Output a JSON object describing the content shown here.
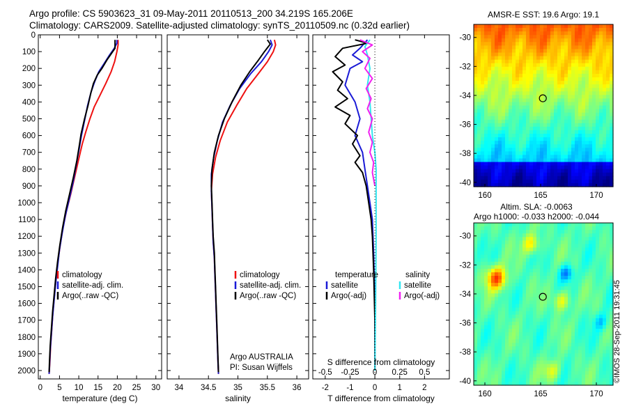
{
  "header": {
    "line1": "Argo profile: CS 5903623_31 09-May-2011 20110513_200 34.219S 165.206E",
    "line2": "Climatology: CARS2009. Satellite-adjusted climatology: synTS_20110509.nc (0.32d earlier)"
  },
  "stamp": "©IMOS 28-Sep-2011 19:31:45",
  "colors": {
    "climatology": "#ee1111",
    "satellite": "#1a1ad6",
    "argo": "#000000",
    "sat_salinity": "#33e6f0",
    "argo_salinity": "#f020f0"
  },
  "chart_data": [
    {
      "type": "line",
      "xlabel": "temperature (deg C)",
      "ylabel": "",
      "xlim": [
        -0.5,
        31.5
      ],
      "ylim": [
        2050,
        0
      ],
      "xticks": [
        0,
        5,
        10,
        15,
        20,
        25,
        30
      ],
      "yticks": [
        0,
        100,
        200,
        300,
        400,
        500,
        600,
        700,
        800,
        900,
        1000,
        1100,
        1200,
        1300,
        1400,
        1500,
        1600,
        1700,
        1800,
        1900,
        2000
      ],
      "legend": [
        "climatology",
        "satellite-adj. clim.",
        "Argo(..raw -QC)"
      ],
      "series": [
        {
          "name": "climatology",
          "color": "#ee1111",
          "points": [
            [
              20.2,
              30
            ],
            [
              20.2,
              60
            ],
            [
              19.9,
              100
            ],
            [
              19.3,
              160
            ],
            [
              18.4,
              220
            ],
            [
              17.0,
              290
            ],
            [
              15.5,
              360
            ],
            [
              14.0,
              430
            ],
            [
              12.9,
              500
            ],
            [
              11.8,
              580
            ],
            [
              10.9,
              650
            ],
            [
              9.9,
              750
            ],
            [
              8.9,
              850
            ],
            [
              7.9,
              950
            ],
            [
              6.8,
              1050
            ],
            [
              5.9,
              1150
            ],
            [
              5.2,
              1250
            ],
            [
              4.6,
              1350
            ],
            [
              4.1,
              1450
            ],
            [
              3.7,
              1550
            ],
            [
              3.3,
              1650
            ],
            [
              3.0,
              1750
            ],
            [
              2.7,
              1850
            ],
            [
              2.5,
              1950
            ],
            [
              2.3,
              2020
            ]
          ]
        },
        {
          "name": "satellite-adj. clim.",
          "color": "#1a1ad6",
          "points": [
            [
              19.9,
              30
            ],
            [
              19.9,
              50
            ],
            [
              19.2,
              80
            ],
            [
              18.0,
              120
            ],
            [
              16.6,
              170
            ],
            [
              15.2,
              220
            ],
            [
              14.1,
              280
            ],
            [
              13.2,
              340
            ],
            [
              12.3,
              420
            ],
            [
              11.6,
              500
            ],
            [
              10.7,
              600
            ],
            [
              10.1,
              680
            ],
            [
              9.3,
              780
            ],
            [
              8.5,
              880
            ],
            [
              7.5,
              980
            ],
            [
              6.5,
              1080
            ],
            [
              5.7,
              1180
            ],
            [
              5.0,
              1280
            ],
            [
              4.5,
              1380
            ],
            [
              4.0,
              1480
            ],
            [
              3.6,
              1580
            ],
            [
              3.2,
              1680
            ],
            [
              2.9,
              1780
            ],
            [
              2.6,
              1880
            ],
            [
              2.4,
              1980
            ],
            [
              2.3,
              2020
            ]
          ]
        },
        {
          "name": "Argo(..raw -QC)",
          "color": "#000000",
          "points": [
            [
              19.4,
              30
            ],
            [
              19.4,
              80
            ],
            [
              18.5,
              110
            ],
            [
              17.3,
              150
            ],
            [
              16.0,
              200
            ],
            [
              14.8,
              240
            ],
            [
              13.8,
              290
            ],
            [
              13.1,
              350
            ],
            [
              12.4,
              420
            ],
            [
              11.5,
              500
            ],
            [
              10.6,
              590
            ],
            [
              10.2,
              650
            ],
            [
              9.5,
              750
            ],
            [
              8.6,
              850
            ],
            [
              7.6,
              950
            ],
            [
              6.6,
              1050
            ],
            [
              5.8,
              1150
            ],
            [
              5.1,
              1250
            ],
            [
              4.5,
              1350
            ],
            [
              4.0,
              1450
            ],
            [
              3.6,
              1550
            ],
            [
              3.2,
              1650
            ],
            [
              2.9,
              1750
            ],
            [
              2.6,
              1850
            ],
            [
              2.4,
              1950
            ],
            [
              2.3,
              2010
            ]
          ]
        }
      ]
    },
    {
      "type": "line",
      "xlabel": "salinity",
      "xlim": [
        33.8,
        36.2
      ],
      "ylim": [
        2050,
        0
      ],
      "xticks": [
        34,
        34.5,
        35,
        35.5,
        36
      ],
      "legend": [
        "climatology",
        "satellite-adj. clim.",
        "Argo(..raw -QC)"
      ],
      "annotation_line1": "Argo AUSTRALIA",
      "annotation_line2": "PI: Susan Wijffels",
      "series": [
        {
          "name": "climatology",
          "color": "#ee1111",
          "points": [
            [
              35.62,
              30
            ],
            [
              35.64,
              60
            ],
            [
              35.6,
              100
            ],
            [
              35.5,
              160
            ],
            [
              35.35,
              230
            ],
            [
              35.15,
              320
            ],
            [
              34.98,
              420
            ],
            [
              34.82,
              520
            ],
            [
              34.7,
              630
            ],
            [
              34.62,
              730
            ],
            [
              34.57,
              830
            ],
            [
              34.55,
              930
            ],
            [
              34.56,
              1030
            ],
            [
              34.57,
              1130
            ],
            [
              34.58,
              1230
            ],
            [
              34.6,
              1330
            ],
            [
              34.61,
              1430
            ],
            [
              34.62,
              1530
            ],
            [
              34.63,
              1630
            ],
            [
              34.64,
              1730
            ],
            [
              34.65,
              1830
            ],
            [
              34.66,
              1930
            ],
            [
              34.67,
              2020
            ]
          ]
        },
        {
          "name": "satellite-adj. clim.",
          "color": "#1a1ad6",
          "points": [
            [
              35.55,
              30
            ],
            [
              35.58,
              60
            ],
            [
              35.52,
              100
            ],
            [
              35.4,
              160
            ],
            [
              35.22,
              230
            ],
            [
              35.03,
              320
            ],
            [
              34.87,
              420
            ],
            [
              34.74,
              520
            ],
            [
              34.65,
              630
            ],
            [
              34.59,
              730
            ],
            [
              34.55,
              830
            ],
            [
              34.55,
              930
            ],
            [
              34.56,
              1030
            ],
            [
              34.57,
              1130
            ],
            [
              34.58,
              1230
            ],
            [
              34.6,
              1330
            ],
            [
              34.61,
              1430
            ],
            [
              34.62,
              1530
            ],
            [
              34.63,
              1630
            ],
            [
              34.64,
              1730
            ],
            [
              34.65,
              1830
            ],
            [
              34.66,
              1930
            ],
            [
              34.67,
              2020
            ]
          ]
        },
        {
          "name": "Argo(..raw -QC)",
          "color": "#000000",
          "points": [
            [
              35.5,
              30
            ],
            [
              35.55,
              55
            ],
            [
              35.45,
              100
            ],
            [
              35.35,
              150
            ],
            [
              35.2,
              220
            ],
            [
              35.05,
              300
            ],
            [
              34.9,
              400
            ],
            [
              34.77,
              500
            ],
            [
              34.67,
              600
            ],
            [
              34.6,
              700
            ],
            [
              34.56,
              800
            ],
            [
              34.55,
              900
            ],
            [
              34.56,
              1000
            ],
            [
              34.57,
              1100
            ],
            [
              34.58,
              1200
            ],
            [
              34.6,
              1300
            ],
            [
              34.61,
              1400
            ],
            [
              34.62,
              1500
            ],
            [
              34.63,
              1600
            ],
            [
              34.64,
              1700
            ],
            [
              34.65,
              1800
            ],
            [
              34.66,
              1900
            ],
            [
              34.67,
              2010
            ]
          ]
        }
      ]
    },
    {
      "type": "line",
      "xlabel": "T difference from climatology",
      "top_axis_label": "S difference from climatology",
      "xlim": [
        -2.5,
        3.0
      ],
      "ylim": [
        2050,
        0
      ],
      "xticks": [
        -2,
        -1,
        0,
        1,
        2
      ],
      "top_ticks": [
        {
          "label": "-0.5",
          "x": -2.0
        },
        {
          "label": "-0.25",
          "x": -1.0
        },
        {
          "label": "0",
          "x": 0.0
        },
        {
          "label": "0.25",
          "x": 1.0
        },
        {
          "label": "0.5",
          "x": 2.0
        }
      ],
      "legend_left_heading": "temperature",
      "legend_right_heading": "salinity",
      "legend": [
        "satellite",
        "Argo(-adj)",
        "satellite",
        "Argo(-adj)"
      ],
      "series": [
        {
          "name": "satellite",
          "color": "#1a1ad6",
          "points": [
            [
              -0.3,
              30
            ],
            [
              -0.6,
              80
            ],
            [
              -0.9,
              120
            ],
            [
              -0.5,
              160
            ],
            [
              -1.0,
              200
            ],
            [
              -1.2,
              300
            ],
            [
              -0.8,
              400
            ],
            [
              -0.6,
              500
            ],
            [
              -0.8,
              600
            ],
            [
              -0.5,
              700
            ],
            [
              -0.4,
              800
            ],
            [
              -0.3,
              900
            ],
            [
              -0.2,
              1000
            ],
            [
              -0.1,
              1100
            ],
            [
              -0.05,
              1300
            ],
            [
              0,
              1600
            ],
            [
              0,
              2000
            ]
          ]
        },
        {
          "name": "Argo(-adj)",
          "color": "#000000",
          "points": [
            [
              -0.8,
              30
            ],
            [
              -0.3,
              50
            ],
            [
              -1.3,
              80
            ],
            [
              -1.6,
              130
            ],
            [
              -1.2,
              180
            ],
            [
              -1.7,
              220
            ],
            [
              -1.3,
              280
            ],
            [
              -1.5,
              330
            ],
            [
              -1.1,
              380
            ],
            [
              -1.6,
              430
            ],
            [
              -1.0,
              480
            ],
            [
              -1.2,
              530
            ],
            [
              -0.7,
              600
            ],
            [
              -0.9,
              650
            ],
            [
              -0.6,
              720
            ],
            [
              -0.8,
              760
            ],
            [
              -0.5,
              820
            ],
            [
              -0.35,
              900
            ],
            [
              -0.25,
              1000
            ],
            [
              -0.15,
              1100
            ],
            [
              -0.1,
              1200
            ],
            [
              -0.05,
              1400
            ],
            [
              0.0,
              1700
            ],
            [
              0.0,
              2000
            ]
          ]
        },
        {
          "name": "salinity satellite",
          "color": "#33e6f0",
          "points": [
            [
              -0.2,
              30
            ],
            [
              -0.4,
              70
            ],
            [
              -0.3,
              120
            ],
            [
              -0.2,
              200
            ],
            [
              -0.3,
              300
            ],
            [
              -0.2,
              400
            ],
            [
              -0.15,
              500
            ],
            [
              -0.1,
              600
            ],
            [
              0,
              700
            ],
            [
              0.05,
              800
            ],
            [
              0.05,
              1000
            ],
            [
              0.05,
              1200
            ],
            [
              0.03,
              1600
            ],
            [
              0.0,
              2000
            ]
          ]
        },
        {
          "name": "salinity Argo(-adj)",
          "color": "#f020f0",
          "points": [
            [
              -0.6,
              30
            ],
            [
              -0.1,
              60
            ],
            [
              -0.5,
              100
            ],
            [
              -0.2,
              140
            ],
            [
              -0.4,
              200
            ],
            [
              -0.1,
              260
            ],
            [
              -0.35,
              320
            ],
            [
              -0.15,
              380
            ],
            [
              -0.3,
              440
            ],
            [
              -0.1,
              500
            ],
            [
              -0.25,
              580
            ],
            [
              -0.1,
              640
            ],
            [
              -0.2,
              700
            ],
            [
              -0.05,
              760
            ],
            [
              -0.1,
              820
            ],
            [
              0,
              900
            ]
          ]
        }
      ]
    },
    {
      "type": "heatmap",
      "title": "AMSR-E SST: 19.6 Argo: 19.1",
      "xlim": [
        159,
        171.5
      ],
      "ylim": [
        -40.3,
        -29.1
      ],
      "xticks": [
        160,
        165,
        170
      ],
      "yticks": [
        -30,
        -32,
        -34,
        -36,
        -38,
        -40
      ],
      "marker": [
        165.2,
        -34.2
      ],
      "colorbar": "hidden"
    },
    {
      "type": "heatmap",
      "title_line1": "Altim. SLA: -0.0063",
      "title_line2": "Argo h1000: -0.033 h2000: -0.044",
      "xlim": [
        159,
        171.5
      ],
      "ylim": [
        -40.3,
        -29.1
      ],
      "xticks": [
        160,
        165,
        170
      ],
      "yticks": [
        -30,
        -32,
        -34,
        -36,
        -38,
        -40
      ],
      "marker": [
        165.2,
        -34.2
      ],
      "colorbar": "hidden"
    }
  ]
}
